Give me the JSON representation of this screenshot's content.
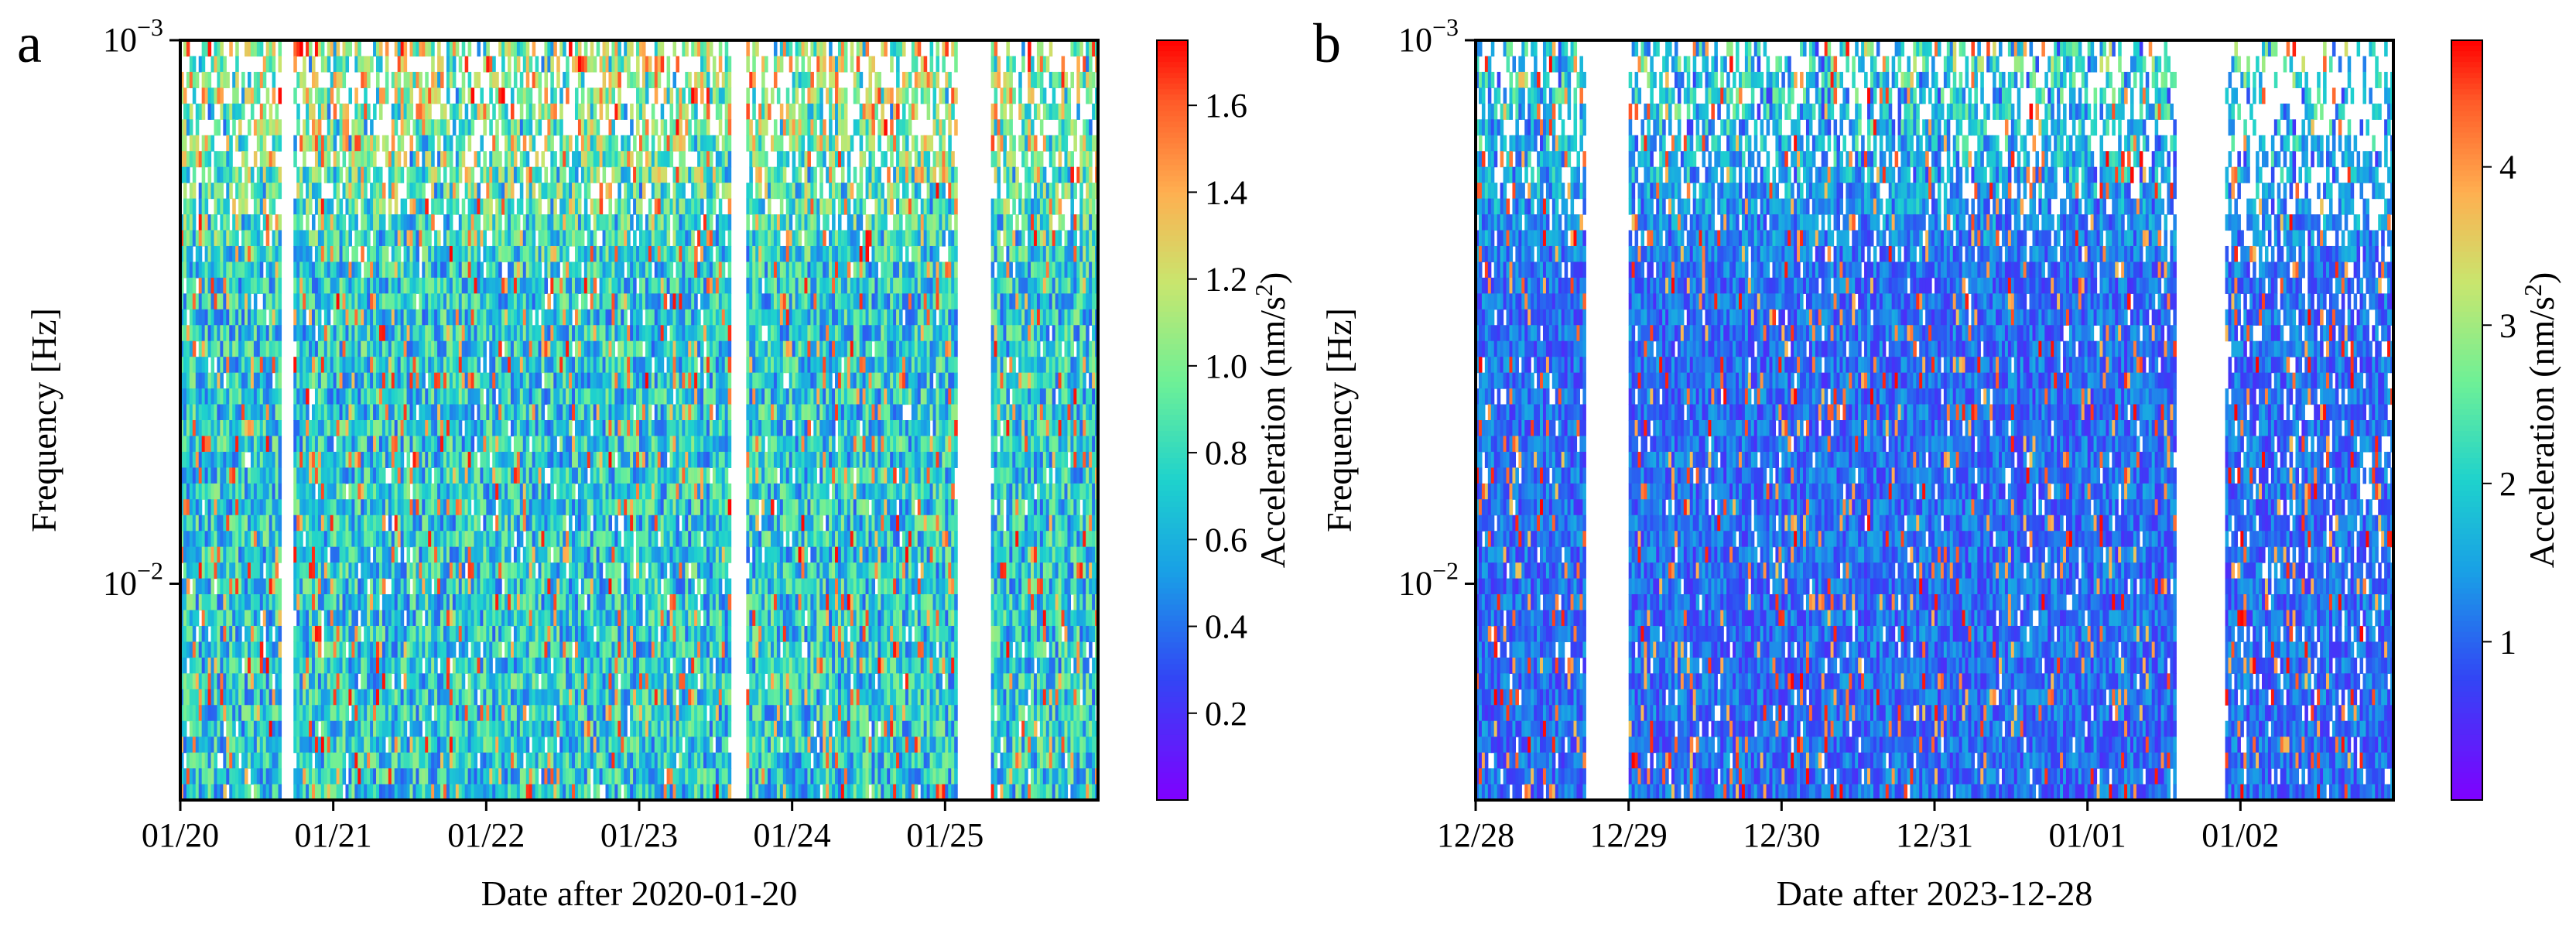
{
  "chart_data": [
    {
      "type": "heatmap",
      "panel_letter": "a",
      "xlabel": "Date after 2020-01-20",
      "ylabel": "Frequency [Hz]",
      "x_ticks": [
        "01/20",
        "01/21",
        "01/22",
        "01/23",
        "01/24",
        "01/25"
      ],
      "x_range_days": [
        0,
        6
      ],
      "y_scale": "log",
      "y_range_hz": [
        0.001,
        0.025
      ],
      "y_ticks": [
        {
          "value": 0.001,
          "base": "10",
          "exp": "−3"
        },
        {
          "value": 0.01,
          "base": "10",
          "exp": "−2"
        }
      ],
      "y_axis_inverted": true,
      "colorbar": {
        "label": "Acceleration (nm/s",
        "label_sup": "2",
        "label_end": ")",
        "range": [
          0,
          1.75
        ],
        "ticks": [
          "0.2",
          "0.4",
          "0.6",
          "0.8",
          "1.0",
          "1.2",
          "1.4",
          "1.6"
        ],
        "tick_values": [
          0.2,
          0.4,
          0.6,
          0.8,
          1.0,
          1.2,
          1.4,
          1.6
        ],
        "colormap": "rainbow"
      },
      "data_gaps_days": [
        [
          0.66,
          0.74
        ],
        [
          3.6,
          3.7
        ],
        [
          5.08,
          5.3
        ]
      ],
      "typical_level": 0.75
    },
    {
      "type": "heatmap",
      "panel_letter": "b",
      "xlabel": "Date after 2023-12-28",
      "ylabel": "Frequency [Hz]",
      "x_ticks": [
        "12/28",
        "12/29",
        "12/30",
        "12/31",
        "01/01",
        "01/02"
      ],
      "x_range_days": [
        0,
        6
      ],
      "y_scale": "log",
      "y_range_hz": [
        0.001,
        0.025
      ],
      "y_ticks": [
        {
          "value": 0.001,
          "base": "10",
          "exp": "−3"
        },
        {
          "value": 0.01,
          "base": "10",
          "exp": "−2"
        }
      ],
      "y_axis_inverted": true,
      "colorbar": {
        "label": "Acceleration (nm/s",
        "label_sup": "2",
        "label_end": ")",
        "range": [
          0,
          4.8
        ],
        "ticks": [
          "1",
          "2",
          "3",
          "4"
        ],
        "tick_values": [
          1,
          2,
          3,
          4
        ],
        "colormap": "rainbow"
      },
      "data_gaps_days": [
        [
          0.72,
          1.0
        ],
        [
          4.58,
          4.9
        ]
      ],
      "typical_level": 1.1
    }
  ]
}
